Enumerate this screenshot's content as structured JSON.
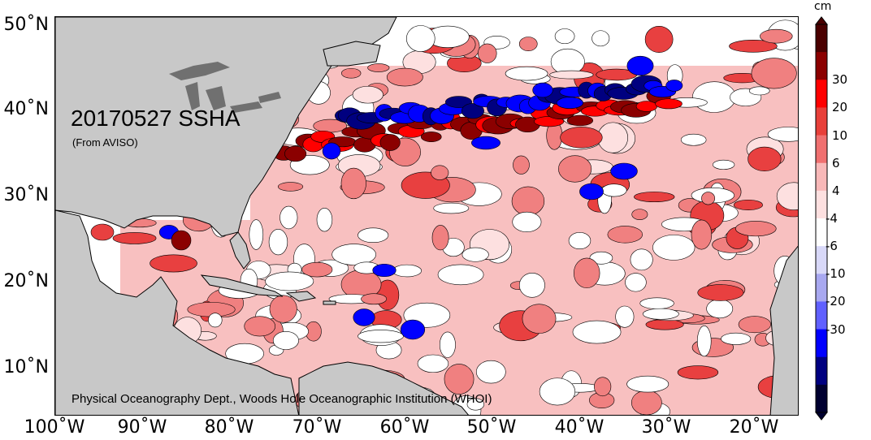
{
  "map": {
    "title": "20170527 SSHA",
    "subtitle": "(From AVISO)",
    "credit": "Physical Oceanography Dept., Woods Hole Oceanographic Institution (WHOI)",
    "lat_labels": [
      "50˚N",
      "40˚N",
      "30˚N",
      "20˚N",
      "10˚N"
    ],
    "lon_labels": [
      "100˚W",
      "90˚W",
      "80˚W",
      "70˚W",
      "60˚W",
      "50˚W",
      "40˚W",
      "30˚W",
      "20˚W"
    ],
    "land_color": "#c8c8c8",
    "ocean_base_color": "#ffffff"
  },
  "colorbar": {
    "unit": "cm",
    "labels": [
      "30",
      "20",
      "10",
      "6",
      "4",
      "-4",
      "-6",
      "-10",
      "-20",
      "-30"
    ],
    "colors": [
      "#4a0000",
      "#8b0000",
      "#ff0000",
      "#e8403a",
      "#f07070",
      "#f8b8b8",
      "#fde0e0",
      "#ffffff",
      "#d8d8f8",
      "#a8a8f0",
      "#6060ff",
      "#0000ff",
      "#000080",
      "#000030"
    ]
  }
}
